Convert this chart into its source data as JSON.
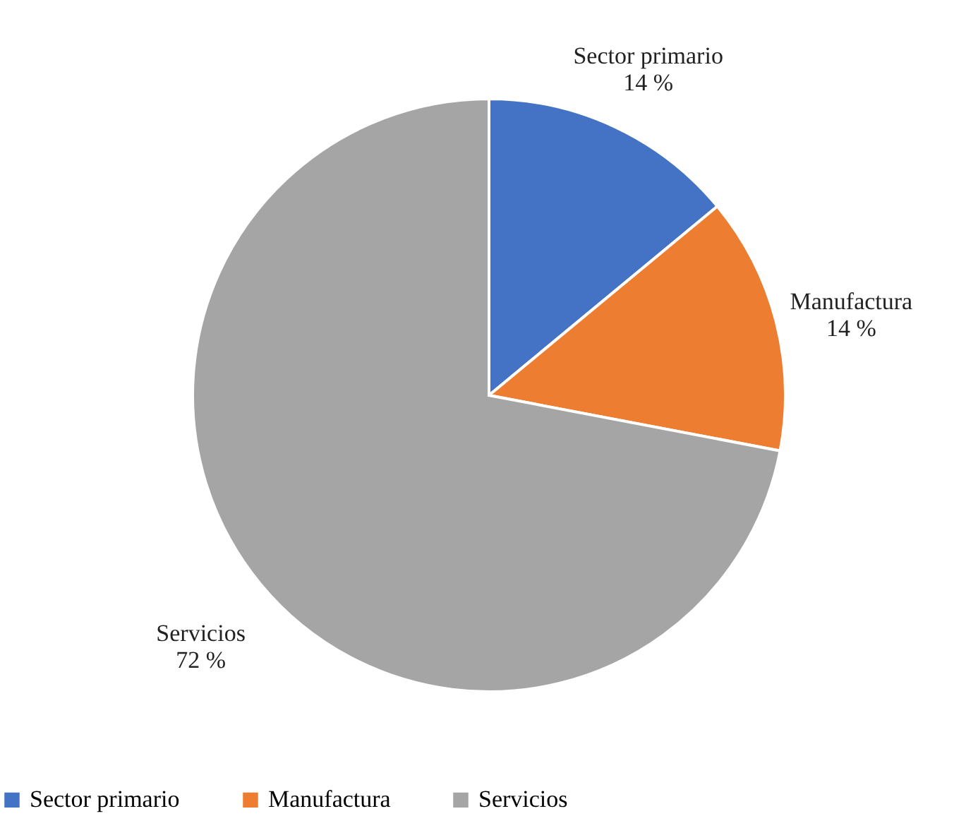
{
  "chart_data": {
    "type": "pie",
    "categories": [
      "Sector primario",
      "Manufactura",
      "Servicios"
    ],
    "values": [
      14,
      14,
      72
    ],
    "colors": [
      "#4472c4",
      "#ed7d31",
      "#a5a5a5"
    ],
    "value_labels": [
      "14 %",
      "14 %",
      "72 %"
    ],
    "legend": "bottom"
  }
}
